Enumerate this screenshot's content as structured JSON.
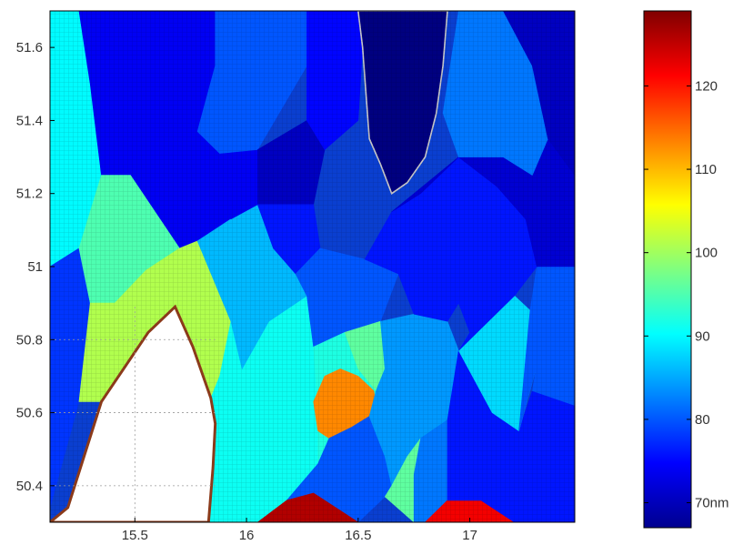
{
  "chart_data": {
    "type": "heatmap",
    "title": "",
    "xlabel": "",
    "ylabel": "",
    "xlim": [
      15.12,
      17.47
    ],
    "ylim": [
      50.3,
      51.7
    ],
    "xticks": [
      "15.5",
      "16",
      "16.5",
      "17"
    ],
    "xtick_values": [
      15.5,
      16,
      16.5,
      17
    ],
    "yticks": [
      "50.4",
      "50.6",
      "50.8",
      "51",
      "51.2",
      "51.4",
      "51.6"
    ],
    "ytick_values": [
      50.4,
      50.6,
      50.8,
      51.0,
      51.2,
      51.4,
      51.6
    ],
    "grid": "dotted",
    "colormap": "jet",
    "colorbar": {
      "range": [
        67,
        129
      ],
      "ticks": [
        "70nm",
        "80",
        "90",
        "100",
        "110",
        "120"
      ],
      "tick_values": [
        70,
        80,
        90,
        100,
        110,
        120
      ],
      "placement": "right"
    },
    "no_data_region": {
      "color": "#ffffff",
      "outline_color": "#8b3a1a",
      "boundary": [
        [
          15.12,
          50.3
        ],
        [
          15.2,
          50.34
        ],
        [
          15.35,
          50.63
        ],
        [
          15.56,
          50.82
        ],
        [
          15.68,
          50.89
        ],
        [
          15.76,
          50.78
        ],
        [
          15.84,
          50.64
        ],
        [
          15.86,
          50.57
        ],
        [
          15.85,
          50.45
        ],
        [
          15.83,
          50.3
        ]
      ]
    },
    "regions": [
      {
        "value": 90,
        "points": [
          [
            15.12,
            51.7
          ],
          [
            15.25,
            51.7
          ],
          [
            15.3,
            51.5
          ],
          [
            15.35,
            51.25
          ],
          [
            15.25,
            51.05
          ],
          [
            15.12,
            51.0
          ]
        ]
      },
      {
        "value": 78,
        "points": [
          [
            15.12,
            51.0
          ],
          [
            15.25,
            51.05
          ],
          [
            15.3,
            50.9
          ],
          [
            15.25,
            50.63
          ],
          [
            15.12,
            50.34
          ]
        ]
      },
      {
        "value": 74,
        "points": [
          [
            15.25,
            51.7
          ],
          [
            15.86,
            51.7
          ],
          [
            15.86,
            51.55
          ],
          [
            15.78,
            51.37
          ],
          [
            15.88,
            51.31
          ],
          [
            15.93,
            51.13
          ],
          [
            15.78,
            51.07
          ],
          [
            15.7,
            51.05
          ],
          [
            15.48,
            51.25
          ],
          [
            15.35,
            51.25
          ],
          [
            15.3,
            51.5
          ]
        ]
      },
      {
        "value": 95,
        "points": [
          [
            15.35,
            51.25
          ],
          [
            15.48,
            51.25
          ],
          [
            15.7,
            51.05
          ],
          [
            15.55,
            50.99
          ],
          [
            15.41,
            50.9
          ],
          [
            15.3,
            50.9
          ],
          [
            15.25,
            51.05
          ]
        ]
      },
      {
        "value": 101,
        "points": [
          [
            15.3,
            50.9
          ],
          [
            15.41,
            50.9
          ],
          [
            15.55,
            50.99
          ],
          [
            15.7,
            51.05
          ],
          [
            15.78,
            51.07
          ],
          [
            15.93,
            50.85
          ],
          [
            15.88,
            50.7
          ],
          [
            15.84,
            50.64
          ],
          [
            15.76,
            50.78
          ],
          [
            15.68,
            50.89
          ],
          [
            15.56,
            50.82
          ],
          [
            15.35,
            50.63
          ],
          [
            15.25,
            50.63
          ]
        ]
      },
      {
        "value": 91,
        "points": [
          [
            15.84,
            50.64
          ],
          [
            15.88,
            50.7
          ],
          [
            15.93,
            50.85
          ],
          [
            15.98,
            50.72
          ],
          [
            16.1,
            50.85
          ],
          [
            16.27,
            50.92
          ],
          [
            16.3,
            50.78
          ],
          [
            16.32,
            50.6
          ],
          [
            16.32,
            50.46
          ],
          [
            16.18,
            50.36
          ],
          [
            16.05,
            50.3
          ],
          [
            15.83,
            50.3
          ],
          [
            15.85,
            50.45
          ],
          [
            15.86,
            50.57
          ]
        ]
      },
      {
        "value": 86,
        "points": [
          [
            15.78,
            51.07
          ],
          [
            15.93,
            51.13
          ],
          [
            16.05,
            51.17
          ],
          [
            16.12,
            51.05
          ],
          [
            16.22,
            50.98
          ],
          [
            16.27,
            50.92
          ],
          [
            16.1,
            50.85
          ],
          [
            15.98,
            50.72
          ],
          [
            15.93,
            50.85
          ]
        ]
      },
      {
        "value": 74,
        "points": [
          [
            15.88,
            51.31
          ],
          [
            16.05,
            51.32
          ],
          [
            16.05,
            51.17
          ],
          [
            15.93,
            51.13
          ]
        ]
      },
      {
        "value": 80,
        "points": [
          [
            15.86,
            51.7
          ],
          [
            16.27,
            51.7
          ],
          [
            16.27,
            51.55
          ],
          [
            16.05,
            51.32
          ],
          [
            15.88,
            51.31
          ],
          [
            15.78,
            51.37
          ],
          [
            15.86,
            51.55
          ]
        ]
      },
      {
        "value": 71,
        "points": [
          [
            16.05,
            51.32
          ],
          [
            16.27,
            51.4
          ],
          [
            16.35,
            51.32
          ],
          [
            16.3,
            51.17
          ],
          [
            16.05,
            51.17
          ]
        ]
      },
      {
        "value": 76,
        "points": [
          [
            16.05,
            51.17
          ],
          [
            16.3,
            51.17
          ],
          [
            16.33,
            51.05
          ],
          [
            16.22,
            50.98
          ],
          [
            16.12,
            51.05
          ]
        ]
      },
      {
        "value": 80,
        "points": [
          [
            16.33,
            51.05
          ],
          [
            16.22,
            50.98
          ],
          [
            16.27,
            50.92
          ],
          [
            16.3,
            50.78
          ],
          [
            16.44,
            50.82
          ],
          [
            16.6,
            50.85
          ],
          [
            16.68,
            50.98
          ],
          [
            16.53,
            51.02
          ]
        ]
      },
      {
        "value": 92,
        "points": [
          [
            16.3,
            50.78
          ],
          [
            16.44,
            50.82
          ],
          [
            16.5,
            50.72
          ],
          [
            16.58,
            50.66
          ],
          [
            16.55,
            50.59
          ],
          [
            16.47,
            50.56
          ],
          [
            16.37,
            50.53
          ],
          [
            16.32,
            50.46
          ],
          [
            16.32,
            50.6
          ]
        ]
      },
      {
        "value": 96,
        "points": [
          [
            16.44,
            50.82
          ],
          [
            16.6,
            50.85
          ],
          [
            16.62,
            50.72
          ],
          [
            16.58,
            50.66
          ],
          [
            16.5,
            50.72
          ]
        ]
      },
      {
        "value": 113,
        "points": [
          [
            16.37,
            50.53
          ],
          [
            16.47,
            50.56
          ],
          [
            16.55,
            50.59
          ],
          [
            16.58,
            50.62
          ],
          [
            16.57,
            50.66
          ],
          [
            16.5,
            50.7
          ],
          [
            16.42,
            50.72
          ],
          [
            16.35,
            50.7
          ],
          [
            16.3,
            50.63
          ],
          [
            16.32,
            50.55
          ]
        ]
      },
      {
        "value": 80,
        "points": [
          [
            16.32,
            50.46
          ],
          [
            16.37,
            50.53
          ],
          [
            16.47,
            50.56
          ],
          [
            16.55,
            50.59
          ],
          [
            16.62,
            50.48
          ],
          [
            16.65,
            50.4
          ],
          [
            16.62,
            50.37
          ],
          [
            16.5,
            50.3
          ],
          [
            16.3,
            50.3
          ],
          [
            16.18,
            50.36
          ]
        ]
      },
      {
        "value": 126,
        "points": [
          [
            16.05,
            50.3
          ],
          [
            16.18,
            50.36
          ],
          [
            16.3,
            50.38
          ],
          [
            16.5,
            50.3
          ]
        ]
      },
      {
        "value": 84,
        "points": [
          [
            16.58,
            50.66
          ],
          [
            16.62,
            50.72
          ],
          [
            16.6,
            50.85
          ],
          [
            16.75,
            50.87
          ],
          [
            16.9,
            50.85
          ],
          [
            16.95,
            50.77
          ],
          [
            16.9,
            50.58
          ],
          [
            16.78,
            50.53
          ],
          [
            16.72,
            50.48
          ],
          [
            16.65,
            50.4
          ],
          [
            16.62,
            50.48
          ],
          [
            16.55,
            50.59
          ]
        ]
      },
      {
        "value": 96,
        "points": [
          [
            16.65,
            50.4
          ],
          [
            16.72,
            50.48
          ],
          [
            16.78,
            50.53
          ],
          [
            16.75,
            50.43
          ],
          [
            16.75,
            50.3
          ],
          [
            16.62,
            50.37
          ]
        ]
      },
      {
        "value": 82,
        "points": [
          [
            16.75,
            50.3
          ],
          [
            16.75,
            50.43
          ],
          [
            16.78,
            50.53
          ],
          [
            16.9,
            50.58
          ],
          [
            16.9,
            50.36
          ],
          [
            16.8,
            50.3
          ]
        ]
      },
      {
        "value": 122,
        "points": [
          [
            16.8,
            50.3
          ],
          [
            16.9,
            50.36
          ],
          [
            17.05,
            50.36
          ],
          [
            17.2,
            50.3
          ]
        ]
      },
      {
        "value": 76,
        "points": [
          [
            16.9,
            50.36
          ],
          [
            17.05,
            50.36
          ],
          [
            17.2,
            50.3
          ],
          [
            17.47,
            50.3
          ],
          [
            17.47,
            50.62
          ],
          [
            17.28,
            50.66
          ],
          [
            17.22,
            50.55
          ],
          [
            16.95,
            50.77
          ],
          [
            16.9,
            50.58
          ]
        ]
      },
      {
        "value": 88,
        "points": [
          [
            17.0,
            50.82
          ],
          [
            17.2,
            50.92
          ],
          [
            17.27,
            50.88
          ],
          [
            17.3,
            50.73
          ],
          [
            17.22,
            50.55
          ],
          [
            17.1,
            50.6
          ],
          [
            16.95,
            50.77
          ]
        ]
      },
      {
        "value": 80,
        "points": [
          [
            17.22,
            50.55
          ],
          [
            17.3,
            50.73
          ],
          [
            17.28,
            50.66
          ],
          [
            17.47,
            50.62
          ],
          [
            17.47,
            51.0
          ],
          [
            17.3,
            51.0
          ],
          [
            17.27,
            50.88
          ]
        ]
      },
      {
        "value": 76,
        "points": [
          [
            16.53,
            51.02
          ],
          [
            16.68,
            50.98
          ],
          [
            16.75,
            50.87
          ],
          [
            16.9,
            50.85
          ],
          [
            16.95,
            50.9
          ],
          [
            17.0,
            50.82
          ],
          [
            16.95,
            50.77
          ],
          [
            17.2,
            50.92
          ],
          [
            17.3,
            51.0
          ],
          [
            17.25,
            51.13
          ],
          [
            17.12,
            51.22
          ],
          [
            16.95,
            51.3
          ],
          [
            16.78,
            51.2
          ],
          [
            16.65,
            51.15
          ]
        ]
      },
      {
        "value": 72,
        "points": [
          [
            16.65,
            51.15
          ],
          [
            16.78,
            51.2
          ],
          [
            16.95,
            51.3
          ],
          [
            17.12,
            51.22
          ],
          [
            17.25,
            51.13
          ],
          [
            17.3,
            51.0
          ],
          [
            17.47,
            51.0
          ],
          [
            17.47,
            51.25
          ],
          [
            17.35,
            51.35
          ],
          [
            17.28,
            51.25
          ],
          [
            17.15,
            51.3
          ],
          [
            16.95,
            51.3
          ]
        ]
      },
      {
        "value": 82,
        "points": [
          [
            16.95,
            51.7
          ],
          [
            17.15,
            51.7
          ],
          [
            17.28,
            51.55
          ],
          [
            17.35,
            51.35
          ],
          [
            17.28,
            51.25
          ],
          [
            17.15,
            51.3
          ],
          [
            16.95,
            51.3
          ],
          [
            16.88,
            51.42
          ]
        ]
      },
      {
        "value": 71,
        "points": [
          [
            17.15,
            51.7
          ],
          [
            17.47,
            51.7
          ],
          [
            17.47,
            51.25
          ],
          [
            17.35,
            51.35
          ],
          [
            17.28,
            51.55
          ]
        ]
      },
      {
        "value": 75,
        "points": [
          [
            16.27,
            51.7
          ],
          [
            16.5,
            51.7
          ],
          [
            16.52,
            51.6
          ],
          [
            16.5,
            51.4
          ],
          [
            16.35,
            51.32
          ],
          [
            16.27,
            51.4
          ],
          [
            16.27,
            51.55
          ]
        ]
      },
      {
        "value": 67,
        "outline": true,
        "points": [
          [
            16.5,
            51.7
          ],
          [
            16.9,
            51.7
          ],
          [
            16.88,
            51.55
          ],
          [
            16.85,
            51.42
          ],
          [
            16.8,
            51.3
          ],
          [
            16.72,
            51.23
          ],
          [
            16.65,
            51.2
          ],
          [
            16.6,
            51.28
          ],
          [
            16.55,
            51.35
          ],
          [
            16.52,
            51.6
          ]
        ]
      }
    ]
  }
}
